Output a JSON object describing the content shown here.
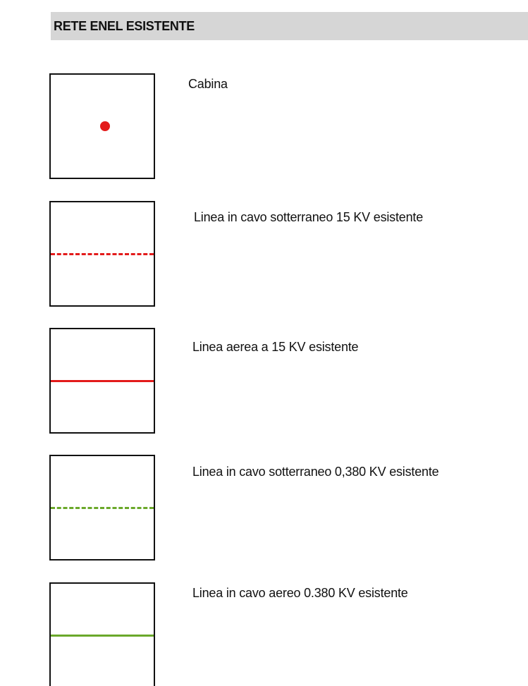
{
  "header": {
    "title": "RETE ENEL ESISTENTE",
    "background": "#d6d6d6"
  },
  "legend": {
    "entries": [
      {
        "label": "Cabina",
        "symbol": "point",
        "color": "#e31b1b"
      },
      {
        "label": "Linea in cavo sotterraneo 15 KV esistente",
        "symbol": "dashed-line",
        "color": "#e31b1b"
      },
      {
        "label": "Linea aerea a 15 KV esistente",
        "symbol": "solid-line",
        "color": "#e31b1b"
      },
      {
        "label": "Linea in cavo sotterraneo 0,380 KV esistente",
        "symbol": "dashed-line",
        "color": "#6aa82a"
      },
      {
        "label": "Linea in cavo aereo 0.380 KV esistente",
        "symbol": "solid-line",
        "color": "#6aa82a"
      }
    ]
  }
}
